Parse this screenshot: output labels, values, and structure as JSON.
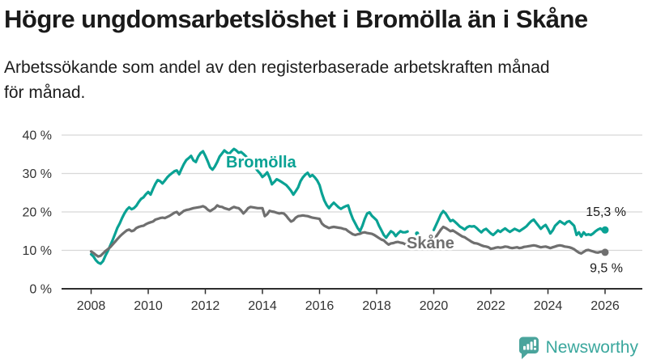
{
  "header": {
    "title": "Högre ungdomsarbetslöshet i Bromölla än i Skåne",
    "subtitle_lines": [
      "Arbetssökande som andel av den registerbaserade arbetskraften månad",
      "för månad."
    ]
  },
  "footer": {
    "logo_icon": "newsworthy-speech-bubble-bar-chart-icon",
    "logo_text": "Newsworthy",
    "brand_color": "#3aa79d"
  },
  "colors": {
    "bromolla_line": "#0aa294",
    "skane_line": "#6f6f6f",
    "gridline": "#d8d8d8",
    "axis": "#2e2e2e",
    "text_dark": "#1a1a1a"
  },
  "chart_data": {
    "type": "line",
    "title": "",
    "xlabel": "",
    "ylabel": "",
    "y_axis": {
      "range": [
        0,
        40
      ],
      "tick_values": [
        0,
        10,
        20,
        30,
        40
      ],
      "tick_labels": [
        "0 %",
        "10 %",
        "20 %",
        "30 %",
        "40 %"
      ],
      "grid": true
    },
    "x_axis": {
      "range": [
        2008,
        2026
      ],
      "tick_years": [
        2008,
        2010,
        2012,
        2014,
        2016,
        2018,
        2020,
        2022,
        2024,
        2026
      ],
      "tick_labels": [
        "2008",
        "2010",
        "2012",
        "2014",
        "2016",
        "2018",
        "2020",
        "2022",
        "2024",
        "2026"
      ]
    },
    "notes": "Monthly values 2008-01 to 2026-01; null = data gap in Bromölla series during 2019 with one isolated point",
    "series": [
      {
        "name": "Bromölla",
        "color": "#0aa294",
        "start_year": 2008,
        "points_per_year": 12,
        "end_value_label": "15,3 %",
        "values": [
          9.0,
          8.4,
          7.4,
          6.8,
          6.5,
          7.2,
          8.6,
          9.8,
          11.2,
          12.6,
          14.2,
          15.8,
          17.0,
          18.4,
          19.6,
          20.6,
          21.2,
          20.7,
          21.0,
          21.6,
          22.6,
          23.4,
          23.8,
          24.6,
          25.2,
          24.5,
          26.0,
          27.3,
          28.3,
          28.0,
          27.4,
          28.2,
          29.0,
          29.6,
          30.1,
          30.6,
          30.8,
          29.8,
          31.2,
          32.5,
          33.5,
          34.0,
          34.6,
          33.4,
          33.0,
          34.4,
          35.3,
          35.8,
          34.6,
          33.2,
          31.6,
          31.0,
          31.8,
          33.0,
          34.4,
          35.2,
          36.0,
          35.5,
          35.1,
          35.8,
          36.4,
          36.0,
          35.4,
          35.6,
          35.1,
          34.5,
          33.8,
          33.0,
          32.2,
          31.5,
          30.7,
          30.0,
          29.1,
          29.6,
          30.3,
          29.0,
          27.2,
          27.8,
          28.5,
          28.2,
          27.8,
          27.4,
          27.0,
          26.3,
          25.5,
          24.5,
          25.4,
          26.4,
          28.0,
          29.0,
          29.7,
          30.2,
          29.2,
          29.6,
          29.0,
          28.2,
          27.0,
          24.8,
          23.0,
          21.8,
          21.0,
          21.8,
          22.4,
          21.8,
          21.2,
          20.8,
          21.2,
          21.5,
          21.7,
          19.8,
          18.2,
          17.0,
          15.8,
          15.0,
          16.4,
          18.2,
          19.6,
          19.9,
          19.0,
          18.4,
          17.8,
          16.4,
          15.2,
          14.0,
          13.3,
          14.2,
          15.0,
          14.6,
          13.7,
          14.4,
          15.0,
          14.7,
          14.7,
          14.9,
          null,
          null,
          null,
          14.4,
          null,
          null,
          null,
          null,
          null,
          null,
          15.3,
          16.6,
          18.0,
          19.4,
          20.2,
          19.6,
          18.6,
          17.6,
          17.9,
          17.4,
          16.8,
          16.2,
          15.8,
          15.4,
          16.0,
          16.3,
          16.2,
          16.3,
          15.8,
          15.2,
          14.7,
          15.3,
          15.6,
          15.0,
          14.4,
          14.0,
          14.6,
          15.2,
          14.8,
          15.3,
          15.7,
          15.2,
          14.8,
          15.2,
          15.6,
          15.3,
          15.0,
          15.4,
          15.8,
          16.3,
          17.0,
          17.6,
          18.0,
          17.2,
          16.4,
          15.6,
          16.2,
          16.6,
          15.6,
          14.4,
          15.2,
          16.4,
          17.0,
          17.6,
          17.2,
          16.8,
          17.4,
          17.6,
          17.0,
          16.4,
          14.0,
          14.7,
          13.6,
          14.7,
          14.0,
          14.2,
          14.0,
          14.4,
          15.0,
          15.4,
          15.7,
          15.2,
          15.3
        ]
      },
      {
        "name": "Skåne",
        "color": "#6f6f6f",
        "start_year": 2008,
        "points_per_year": 12,
        "end_value_label": "9,5 %",
        "values": [
          9.7,
          9.3,
          8.8,
          8.4,
          8.6,
          9.2,
          9.8,
          10.3,
          10.8,
          11.5,
          12.2,
          12.9,
          13.6,
          14.2,
          14.7,
          15.2,
          15.4,
          15.0,
          15.2,
          15.8,
          16.1,
          16.3,
          16.4,
          16.8,
          17.1,
          17.3,
          17.5,
          18.0,
          18.2,
          18.4,
          18.5,
          18.4,
          18.7,
          19.0,
          19.4,
          19.8,
          20.0,
          19.3,
          19.8,
          20.3,
          20.5,
          20.6,
          20.8,
          21.0,
          21.1,
          21.2,
          21.3,
          21.5,
          21.2,
          20.6,
          20.2,
          20.6,
          21.0,
          21.7,
          21.4,
          21.3,
          21.0,
          20.8,
          20.6,
          21.0,
          21.3,
          21.1,
          21.0,
          20.4,
          19.6,
          20.2,
          21.0,
          21.3,
          21.2,
          21.1,
          21.0,
          21.0,
          21.0,
          18.9,
          19.4,
          20.3,
          20.1,
          20.0,
          19.8,
          19.6,
          19.7,
          19.6,
          19.0,
          18.2,
          17.5,
          17.8,
          18.5,
          18.9,
          19.0,
          19.1,
          19.0,
          18.9,
          18.7,
          18.5,
          18.4,
          18.3,
          18.2,
          17.0,
          16.4,
          16.1,
          15.8,
          16.0,
          16.1,
          16.0,
          15.9,
          15.8,
          15.6,
          15.5,
          15.0,
          14.6,
          14.2,
          14.0,
          14.2,
          14.3,
          14.6,
          14.7,
          14.5,
          14.4,
          14.3,
          14.0,
          13.6,
          13.2,
          12.8,
          12.6,
          12.0,
          11.5,
          11.8,
          11.9,
          12.1,
          12.2,
          12.0,
          11.9,
          11.6,
          11.5,
          11.6,
          11.7,
          11.8,
          11.9,
          12.1,
          12.2,
          12.1,
          12.0,
          12.2,
          12.5,
          13.0,
          13.6,
          14.5,
          15.4,
          16.1,
          15.8,
          15.4,
          15.0,
          15.2,
          14.8,
          14.4,
          14.0,
          13.6,
          13.4,
          13.0,
          12.6,
          12.2,
          11.9,
          11.8,
          11.6,
          11.3,
          11.1,
          11.0,
          10.8,
          10.4,
          10.5,
          10.7,
          10.8,
          10.7,
          10.8,
          11.0,
          10.9,
          10.7,
          10.6,
          10.7,
          10.8,
          10.6,
          10.7,
          10.9,
          11.0,
          11.1,
          11.2,
          11.3,
          11.2,
          11.0,
          10.8,
          10.9,
          11.0,
          10.8,
          10.6,
          10.8,
          11.0,
          11.2,
          11.3,
          11.2,
          11.0,
          10.9,
          10.8,
          10.6,
          10.3,
          9.8,
          9.4,
          9.2,
          9.6,
          10.0,
          10.1,
          9.9,
          9.7,
          9.5,
          9.4,
          9.6,
          9.7,
          9.5
        ]
      }
    ],
    "annotations": {
      "series_labels": [
        {
          "text": "Bromölla",
          "color": "#0aa294"
        },
        {
          "text": "Skåne",
          "color": "#6f6f6f"
        }
      ],
      "end_labels": [
        {
          "text": "15,3 %"
        },
        {
          "text": "9,5 %"
        }
      ]
    },
    "legend_position": "inline-labels"
  }
}
